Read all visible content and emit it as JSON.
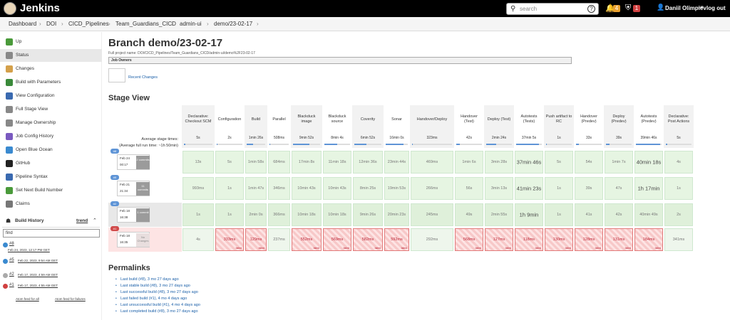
{
  "header": {
    "brand": "Jenkins",
    "search_placeholder": "search",
    "notif_count": "4",
    "security_count": "1",
    "user": "Daniil Olimpiev",
    "logout": "log out"
  },
  "breadcrumb": [
    "Dashboard",
    "DOI",
    "CICD_Pipelines",
    "Team_Guardians_CICD",
    "admin-ui",
    "demo/23-02-17"
  ],
  "sidebar": {
    "items": [
      {
        "label": "Up",
        "icon": "arrow-up-icon",
        "color": "#4a9a3a"
      },
      {
        "label": "Status",
        "icon": "search-icon",
        "color": "#888888",
        "selected": true
      },
      {
        "label": "Changes",
        "icon": "notepad-icon",
        "color": "#d4a04a"
      },
      {
        "label": "Build with Parameters",
        "icon": "clock-icon",
        "color": "#3a8a3a"
      },
      {
        "label": "View Configuration",
        "icon": "gear-icon",
        "color": "#3a6ab0"
      },
      {
        "label": "Full Stage View",
        "icon": "search-icon",
        "color": "#888888"
      },
      {
        "label": "Manage Ownership",
        "icon": "gear-icon",
        "color": "#888888"
      },
      {
        "label": "Job Config History",
        "icon": "history-icon",
        "color": "#7a5ac0"
      },
      {
        "label": "Open Blue Ocean",
        "icon": "blue-ocean-icon",
        "color": "#3a8ad0"
      },
      {
        "label": "GitHub",
        "icon": "github-icon",
        "color": "#222222"
      },
      {
        "label": "Pipeline Syntax",
        "icon": "help-icon",
        "color": "#3a6ab0"
      },
      {
        "label": "Set Next Build Number",
        "icon": "hash-icon",
        "color": "#4a9a3a"
      },
      {
        "label": "Claims",
        "icon": "user-icon",
        "color": "#777777"
      }
    ]
  },
  "build_history": {
    "title": "Build History",
    "trend": "trend",
    "find": "find",
    "builds": [
      {
        "num": "#8",
        "date": "Feb 24, 2023, 12:17 PM GET",
        "status": "blue"
      },
      {
        "num": "#5",
        "date": "Feb 22, 2023, 9:54 AM GET",
        "status": "blue"
      },
      {
        "num": "#2",
        "date": "Feb 17, 2023, 4:59 AM GET",
        "status": "grey"
      },
      {
        "num": "#1",
        "date": "Feb 17, 2023, 4:55 AM GET",
        "status": "red"
      }
    ],
    "atom_all": "Atom feed for all",
    "atom_failures": "Atom feed for failures"
  },
  "main": {
    "title": "Branch demo/23-02-17",
    "full_name": "Full project name: DOI/CICD_Pipelines/Team_Guardians_CICD/admin-ui/demo%2F23-02-17",
    "job_owners": "Job Owners",
    "recent_changes": "Recent Changes",
    "stage_view_title": "Stage View",
    "avg_label": "Average stage times:",
    "avg_full": "(Average full run time: ~1h 50min)",
    "permalinks_title": "Permalinks",
    "permalinks": [
      "Last build (#8), 3 mo 27 days ago",
      "Last stable build (#8), 3 mo 27 days ago",
      "Last successful build (#8), 3 mo 27 days ago",
      "Last failed build (#1), 4 mo 4 days ago",
      "Last unsuccessful build (#1), 4 mo 4 days ago",
      "Last completed build (#8), 3 mo 27 days ago"
    ]
  },
  "stages": [
    {
      "name": "Declarative: Checkout SCM",
      "avg": "5s",
      "bar": 0.05
    },
    {
      "name": "Configuration",
      "avg": "2s",
      "bar": 0.02
    },
    {
      "name": "Build",
      "avg": "1min 26s",
      "bar": 0.35
    },
    {
      "name": "Parallel",
      "avg": "508ms",
      "bar": 0.01
    },
    {
      "name": "Blackduck image",
      "avg": "9min 52s",
      "bar": 0.6
    },
    {
      "name": "Blackduck source",
      "avg": "8min 4s",
      "bar": 0.5
    },
    {
      "name": "Coverity",
      "avg": "6min 52s",
      "bar": 0.45
    },
    {
      "name": "Sonar",
      "avg": "16min 0s",
      "bar": 0.8
    },
    {
      "name": "Handover/Deploy",
      "avg": "323ms",
      "bar": 0.01
    },
    {
      "name": "Handover (Test)",
      "avg": "42s",
      "bar": 0.15
    },
    {
      "name": "Deploy (Test)",
      "avg": "2min 24s",
      "bar": 0.4
    },
    {
      "name": "Autotests (Tests)",
      "avg": "37min 5s",
      "bar": 0.9
    },
    {
      "name": "Push artifact to RC",
      "avg": "1s",
      "bar": 0.01
    },
    {
      "name": "Handover (Predev)",
      "avg": "33s",
      "bar": 0.12
    },
    {
      "name": "Deploy (Predev)",
      "avg": "39s",
      "bar": 0.13
    },
    {
      "name": "Autotests (Predev)",
      "avg": "39min 46s",
      "bar": 0.95
    },
    {
      "name": "Declarative: Post Actions",
      "avg": "5s",
      "bar": 0.05
    }
  ],
  "runs": [
    {
      "tag": "#8",
      "date": "Feb 24",
      "time": "00:17",
      "commits": "2 commits",
      "tag_color": "#5e94d6",
      "cells": [
        "13s",
        "5s",
        "1min 58s",
        "684ms",
        "17min 8s",
        "11min 18s",
        "12min 36s",
        "23min 44s",
        "469ms",
        "1min 6s",
        "3min 28s",
        "37min 46s",
        "5s",
        "54s",
        "1min 7s",
        "40min 18s",
        "4s"
      ],
      "states": [
        "ok",
        "ok",
        "ok",
        "ok",
        "ok",
        "ok",
        "ok",
        "ok",
        "ok",
        "ok",
        "ok",
        "ok",
        "ok",
        "ok",
        "ok",
        "ok",
        "ok"
      ],
      "big": [
        11,
        15
      ]
    },
    {
      "tag": "#5",
      "date": "Feb 21",
      "time": "21:34",
      "commits": "11 commits",
      "tag_color": "#5e94d6",
      "cells": [
        "993ms",
        "1s",
        "1min 47s",
        "346ms",
        "10min 43s",
        "10min 43s",
        "8min 25s",
        "19min 53s",
        "266ms",
        "56s",
        "3min 13s",
        "41min 23s",
        "1s",
        "39s",
        "47s",
        "1h 17min",
        "1s"
      ],
      "states": [
        "ok",
        "ok",
        "ok",
        "ok",
        "ok",
        "ok",
        "ok",
        "ok",
        "ok",
        "ok",
        "ok",
        "ok",
        "ok",
        "ok",
        "ok",
        "ok",
        "ok"
      ],
      "big": [
        11,
        15
      ]
    },
    {
      "tag": "#2",
      "date": "Feb 18",
      "time": "16:38",
      "commits": "1 commit",
      "tag_color": "#5e94d6",
      "cells": [
        "1s",
        "1s",
        "2min 0s",
        "366ms",
        "10min 18s",
        "10min 18s",
        "9min 26s",
        "20min 23s",
        "245ms",
        "49s",
        "2min 55s",
        "1h 9min",
        "1s",
        "41s",
        "42s",
        "40min 49s",
        "2s"
      ],
      "states": [
        "okd",
        "okd",
        "okd",
        "okd",
        "okd",
        "okd",
        "okd",
        "okd",
        "okd",
        "okd",
        "okd",
        "okd",
        "okd",
        "okd",
        "okd",
        "okd",
        "okd"
      ],
      "big": [
        11
      ]
    },
    {
      "tag": "#1",
      "date": "Feb 18",
      "time": "16:35",
      "commits": "No Changes",
      "tag_color": "#d04a4a",
      "cells": [
        "4s",
        "333ms",
        "129ms",
        "237ms",
        "552ms",
        "569ms",
        "582ms",
        "592ms",
        "292ms",
        "568ms",
        "127ms",
        "118ms",
        "130ms",
        "128ms",
        "131ms",
        "184ms",
        "341ms"
      ],
      "states": [
        "skipped",
        "fail",
        "fail",
        "skipped",
        "fail",
        "fail",
        "fail",
        "fail",
        "skipped",
        "fail",
        "fail",
        "fail",
        "fail",
        "fail",
        "fail",
        "fail",
        "skipped"
      ],
      "failed_label": "failed"
    }
  ]
}
